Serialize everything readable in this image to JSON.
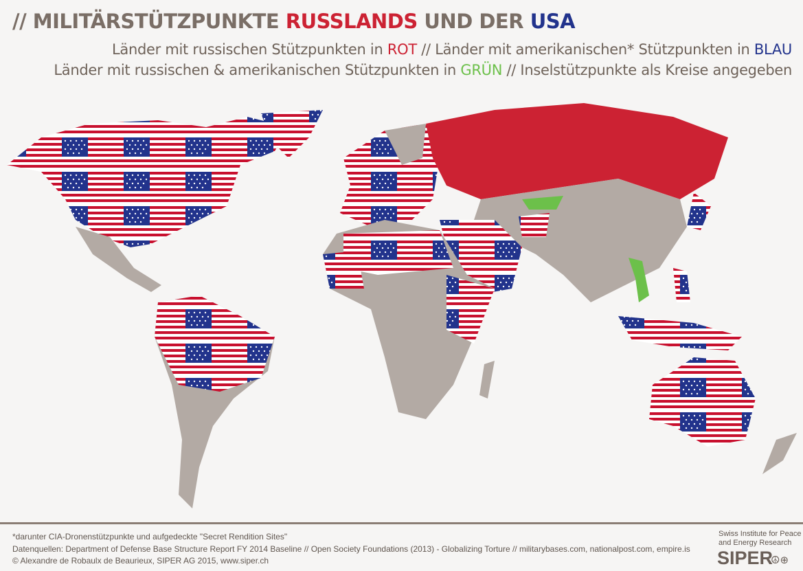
{
  "title": {
    "prefix": "// MILITÄRSTÜTZPUNKTE ",
    "russia": "RUSSLANDS",
    "middle": " UND DER ",
    "usa": "USA"
  },
  "legend": {
    "line1_a": "Länder mit russischen Stützpunkten in ",
    "line1_red": "ROT",
    "line1_b": " // Länder mit amerikanischen* Stützpunkten in ",
    "line1_blue": "BLAU",
    "line2_a": "Länder mit russischen & amerikanischen Stützpunkten in ",
    "line2_green": "GRÜN",
    "line2_b": " // Inselstützpunkte als Kreise angegeben"
  },
  "colors": {
    "russia": "#cc2233",
    "usa": "#22338c",
    "both": "#6cc04a",
    "none": "#b3aaa4",
    "background": "#f6f5f4"
  },
  "map": {
    "us_base_fill": "us-flag-pattern",
    "russia_base_fill": "red",
    "both_fill": "green",
    "other_fill": "gray"
  },
  "footer": {
    "note": "*darunter CIA-Dronenstützpunkte und aufgedeckte \"Secret Rendition Sites\"",
    "sources": "Datenquellen: Department of Defense Base Structure Report FY 2014 Baseline // Open Society Foundations (2013) - Globalizing Torture // militarybases.com, nationalpost.com, empire.is",
    "copyright": "© Alexandre de Robaulx de Beaurieux, SIPER AG 2015, www.siper.ch"
  },
  "logo": {
    "line1": "Swiss Institute for Peace",
    "line2": "and Energy Research",
    "name": "SIPER",
    "symbols": "☮⊕"
  }
}
